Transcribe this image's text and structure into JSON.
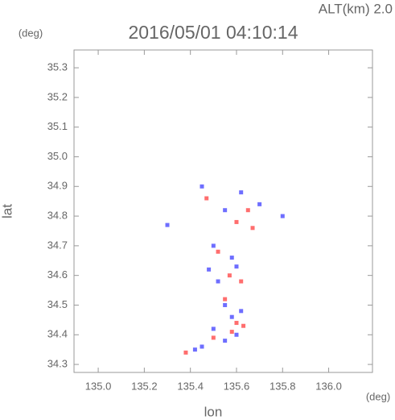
{
  "chart_data": {
    "type": "scatter",
    "title": "2016/05/01 04:10:14",
    "subtitle": "ALT(km) 2.0",
    "x_label": "lon",
    "y_label": "lat",
    "x_unit": "(deg)",
    "y_unit": "(deg)",
    "xlim": [
      134.895,
      136.19
    ],
    "ylim": [
      34.273,
      35.36
    ],
    "xticks": [
      {
        "value": 135.0,
        "label": "135.0"
      },
      135.2,
      135.4,
      135.6,
      135.8,
      {
        "value": 136.0,
        "label": "136.0"
      }
    ],
    "yticks": [
      34.3,
      34.4,
      34.5,
      34.6,
      34.7,
      34.8,
      34.9,
      {
        "value": 35.0,
        "label": "35.0"
      },
      35.1,
      35.2,
      35.3
    ],
    "series": [
      {
        "color": "#6e6eff",
        "x": [
          135.45,
          135.55,
          135.62,
          135.7,
          135.8,
          135.5,
          135.58,
          135.48,
          135.52,
          135.6,
          135.55,
          135.58,
          135.62,
          135.5,
          135.45,
          135.55,
          135.6,
          135.42,
          135.3
        ],
        "values": [
          34.9,
          34.82,
          34.88,
          34.84,
          34.8,
          34.7,
          34.66,
          34.62,
          34.58,
          34.63,
          34.5,
          34.46,
          34.48,
          34.42,
          34.36,
          34.38,
          34.4,
          34.35,
          34.77
        ]
      },
      {
        "color": "#ff6e6e",
        "x": [
          135.47,
          135.6,
          135.65,
          135.67,
          135.52,
          135.57,
          135.62,
          135.55,
          135.6,
          135.58,
          135.63,
          135.38,
          135.5
        ],
        "values": [
          34.86,
          34.78,
          34.82,
          34.76,
          34.68,
          34.6,
          34.58,
          34.52,
          34.44,
          34.41,
          34.43,
          34.34,
          34.39
        ]
      }
    ]
  }
}
